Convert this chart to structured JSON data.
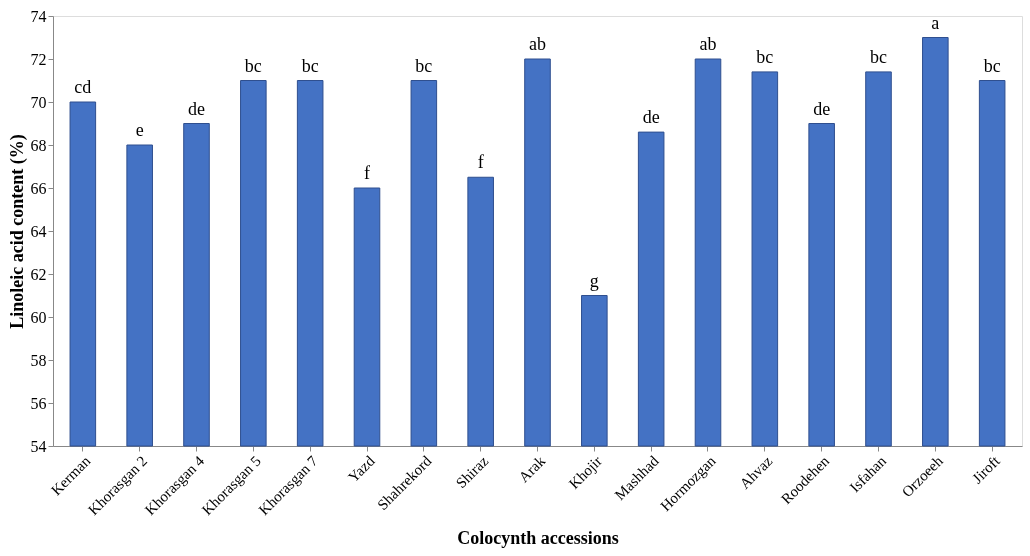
{
  "chart_data": {
    "type": "bar",
    "xlabel": "Colocynth accessions",
    "ylabel": "Linoleic acid content (%)",
    "categories": [
      "Kerman",
      "Khorasgan 2",
      "Khorasgan 4",
      "Khorasgan 5",
      "Khorasgan 7",
      "Yazd",
      "Shahrekord",
      "Shiraz",
      "Arak",
      "Khojir",
      "Mashhad",
      "Hormozgan",
      "Ahvaz",
      "Roodehen",
      "Isfahan",
      "Orzoeeh",
      "Jiroft"
    ],
    "values": [
      70.0,
      68.0,
      69.0,
      71.0,
      71.0,
      66.0,
      71.0,
      66.5,
      72.0,
      61.0,
      68.6,
      72.0,
      71.4,
      69.0,
      71.4,
      73.0,
      71.0
    ],
    "color": "#4472c4",
    "ylim": [
      54,
      74
    ],
    "yticks": [
      54,
      56,
      58,
      60,
      62,
      64,
      66,
      68,
      70,
      72,
      74
    ],
    "grid": false,
    "annotations": [
      {
        "text": "cd",
        "x": "Kerman",
        "y": 70.0
      },
      {
        "text": "e",
        "x": "Khorasgan 2",
        "y": 68.0
      },
      {
        "text": "de",
        "x": "Khorasgan 4",
        "y": 69.0
      },
      {
        "text": "bc",
        "x": "Khorasgan 5",
        "y": 71.0
      },
      {
        "text": "bc",
        "x": "Khorasgan 7",
        "y": 71.0
      },
      {
        "text": "f",
        "x": "Yazd",
        "y": 66.0
      },
      {
        "text": "bc",
        "x": "Shahrekord",
        "y": 71.0
      },
      {
        "text": "f",
        "x": "Shiraz",
        "y": 66.5
      },
      {
        "text": "ab",
        "x": "Arak",
        "y": 72.0
      },
      {
        "text": "g",
        "x": "Khojir",
        "y": 61.0
      },
      {
        "text": "de",
        "x": "Mashhad",
        "y": 68.6
      },
      {
        "text": "ab",
        "x": "Hormozgan",
        "y": 72.0
      },
      {
        "text": "bc",
        "x": "Ahvaz",
        "y": 71.4
      },
      {
        "text": "de",
        "x": "Roodehen",
        "y": 69.0
      },
      {
        "text": "bc",
        "x": "Isfahan",
        "y": 71.4
      },
      {
        "text": "a",
        "x": "Orzoeeh",
        "y": 73.0
      },
      {
        "text": "bc",
        "x": "Jiroft",
        "y": 71.0
      }
    ]
  }
}
